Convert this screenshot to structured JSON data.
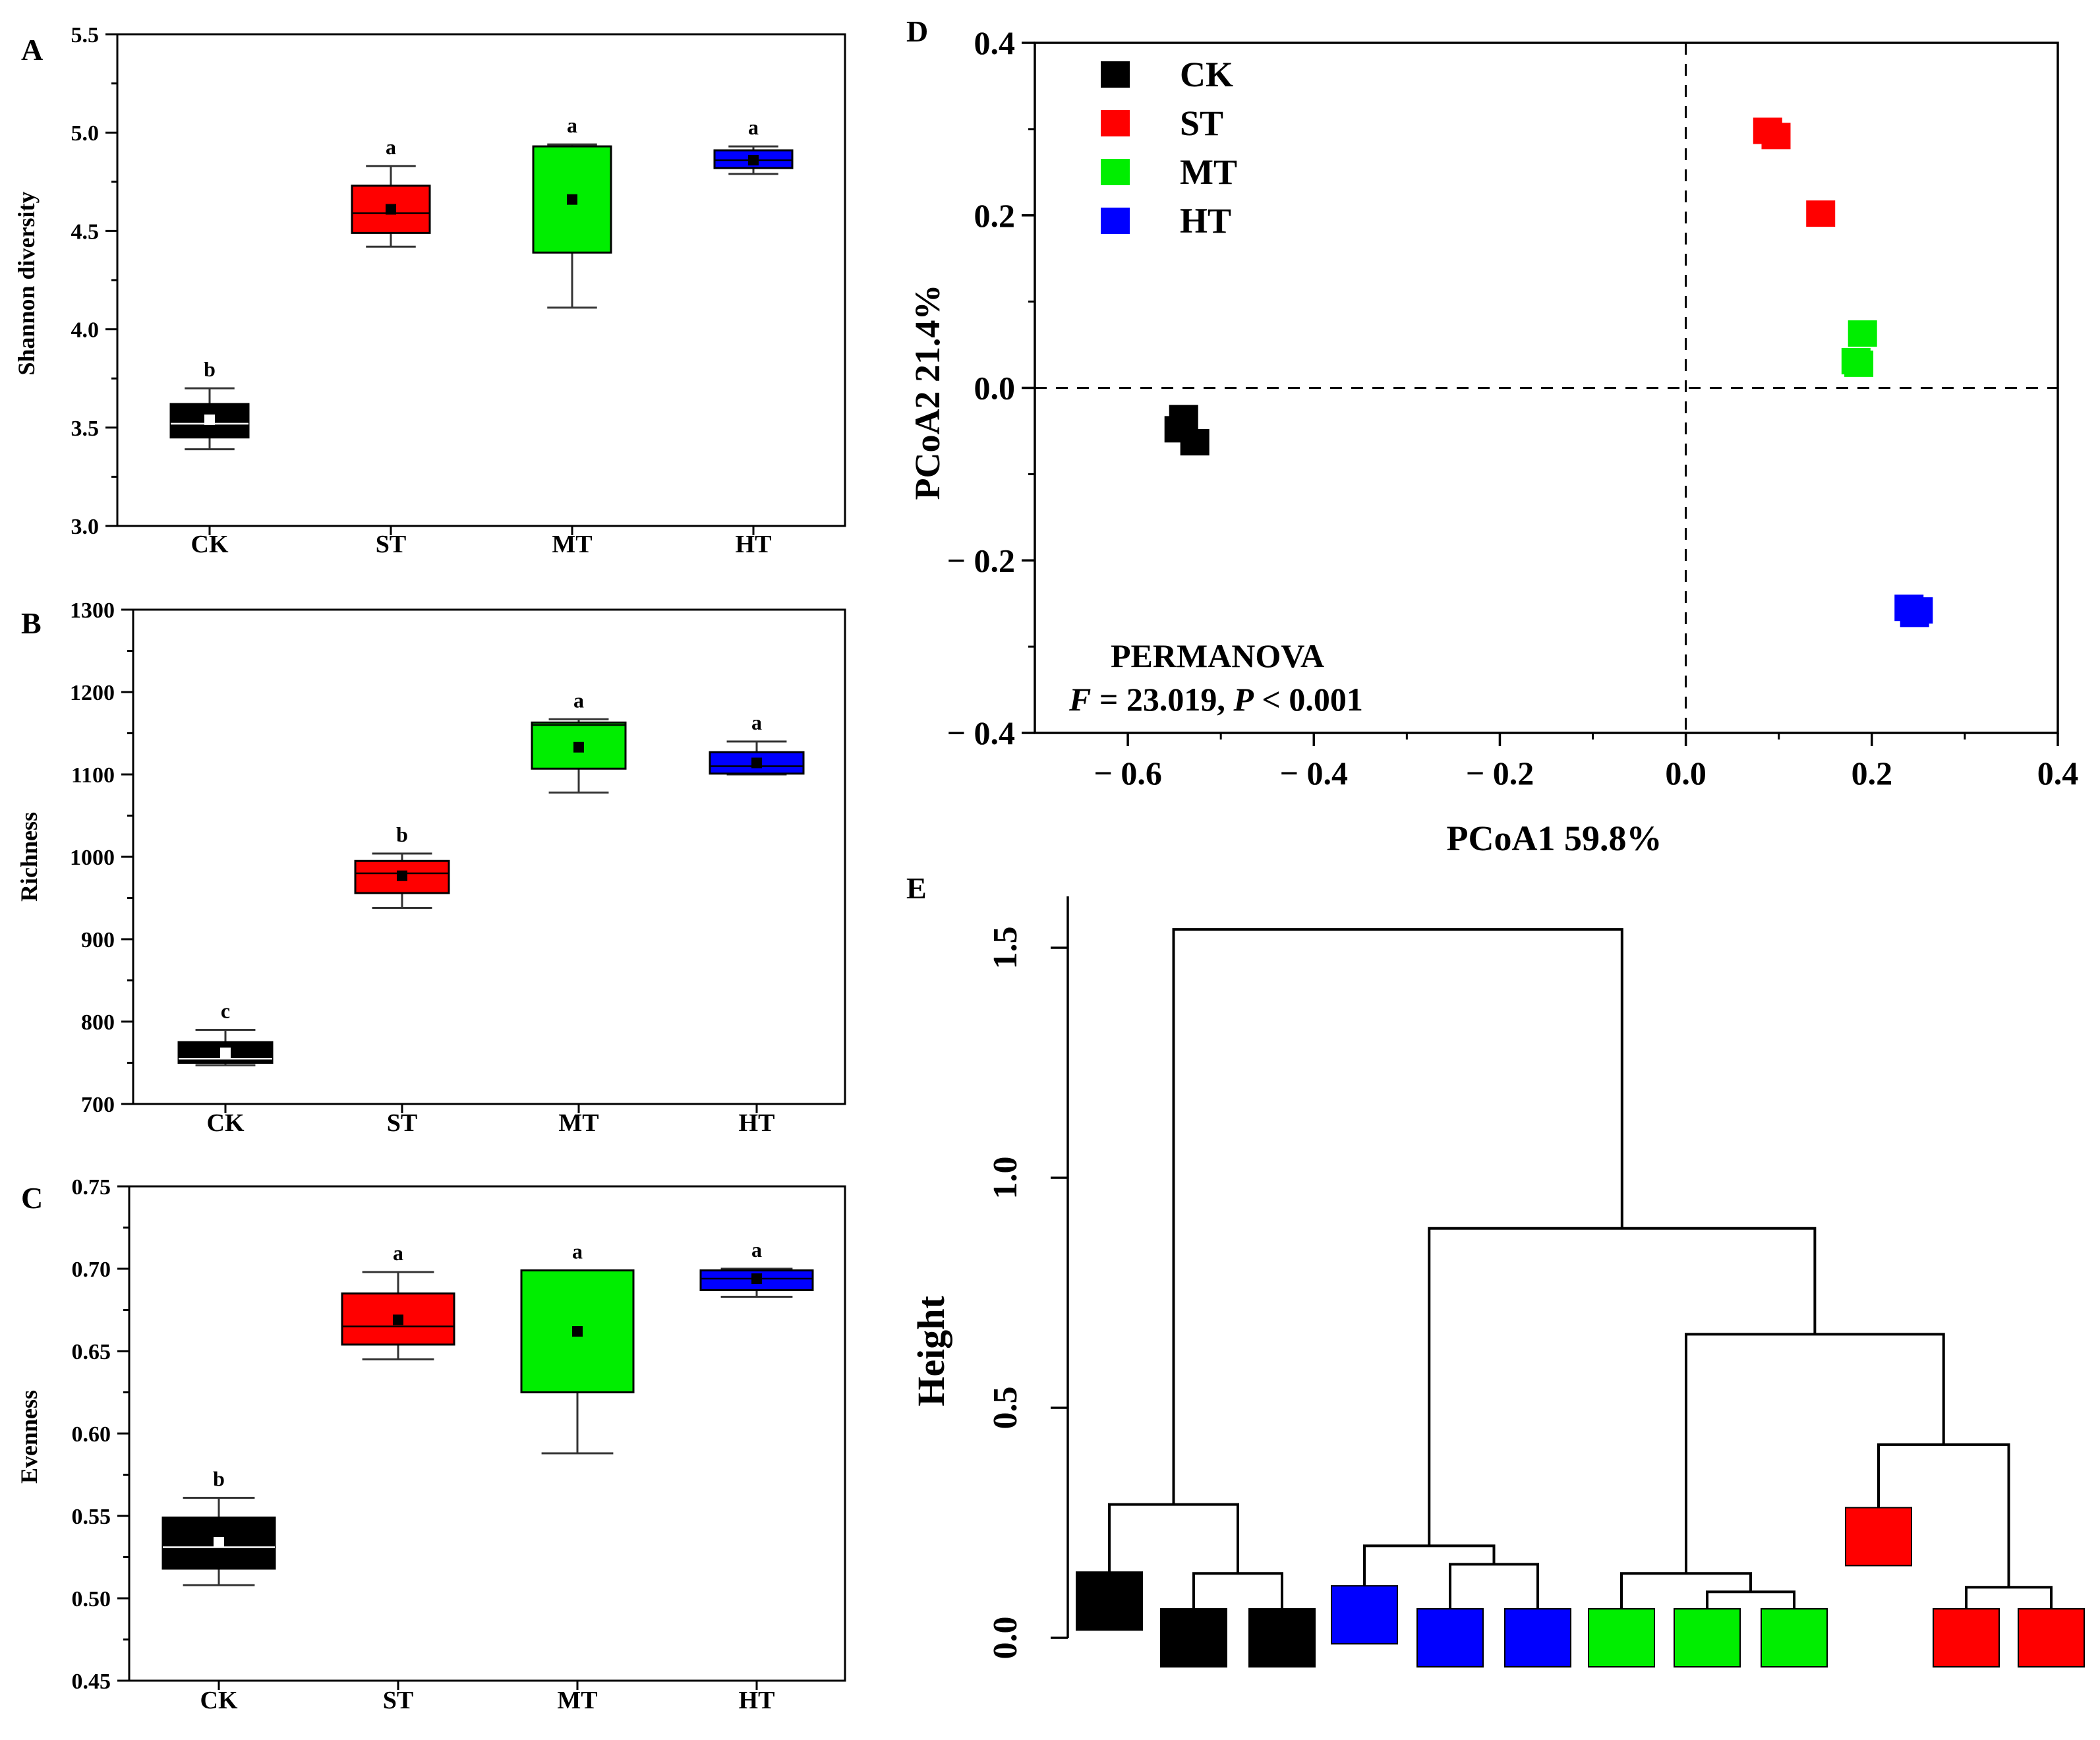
{
  "colors": {
    "CK": "#000000",
    "ST": "#ff0000",
    "MT": "#00ee00",
    "HT": "#0000ff"
  },
  "chart_data": [
    {
      "type": "box",
      "id": "A",
      "panel_label": "A",
      "ylabel": "Shannon diversity",
      "ylim": [
        3.0,
        5.5
      ],
      "yticks": [
        "3.0",
        "3.5",
        "4.0",
        "4.5",
        "5.0",
        "5.5"
      ],
      "categories": [
        "CK",
        "ST",
        "MT",
        "HT"
      ],
      "boxes": [
        {
          "group": "CK",
          "min": 3.39,
          "q1": 3.45,
          "median": 3.52,
          "q3": 3.62,
          "max": 3.7,
          "mean": 3.54,
          "letter": "b"
        },
        {
          "group": "ST",
          "min": 4.42,
          "q1": 4.49,
          "median": 4.59,
          "q3": 4.73,
          "max": 4.83,
          "mean": 4.61,
          "letter": "a"
        },
        {
          "group": "MT",
          "min": 4.11,
          "q1": 4.39,
          "median": 4.93,
          "q3": 4.93,
          "max": 4.94,
          "mean": 4.66,
          "letter": "a"
        },
        {
          "group": "HT",
          "min": 4.79,
          "q1": 4.82,
          "median": 4.86,
          "q3": 4.91,
          "max": 4.93,
          "mean": 4.86,
          "letter": "a"
        }
      ]
    },
    {
      "type": "box",
      "id": "B",
      "panel_label": "B",
      "ylabel": "Richness",
      "ylim": [
        700,
        1300
      ],
      "yticks": [
        "700",
        "800",
        "900",
        "1000",
        "1100",
        "1200",
        "1300"
      ],
      "categories": [
        "CK",
        "ST",
        "MT",
        "HT"
      ],
      "boxes": [
        {
          "group": "CK",
          "min": 747,
          "q1": 750,
          "median": 755,
          "q3": 775,
          "max": 790,
          "mean": 762,
          "letter": "c"
        },
        {
          "group": "ST",
          "min": 938,
          "q1": 956,
          "median": 980,
          "q3": 995,
          "max": 1004,
          "mean": 977,
          "letter": "b"
        },
        {
          "group": "MT",
          "min": 1078,
          "q1": 1107,
          "median": 1160,
          "q3": 1163,
          "max": 1167,
          "mean": 1133,
          "letter": "a"
        },
        {
          "group": "HT",
          "min": 1100,
          "q1": 1101,
          "median": 1110,
          "q3": 1127,
          "max": 1140,
          "mean": 1114,
          "letter": "a"
        }
      ]
    },
    {
      "type": "box",
      "id": "C",
      "panel_label": "C",
      "ylabel": "Evenness",
      "ylim": [
        0.45,
        0.75
      ],
      "yticks": [
        "0.45",
        "0.50",
        "0.55",
        "0.60",
        "0.65",
        "0.70",
        "0.75"
      ],
      "categories": [
        "CK",
        "ST",
        "MT",
        "HT"
      ],
      "boxes": [
        {
          "group": "CK",
          "min": 0.508,
          "q1": 0.518,
          "median": 0.531,
          "q3": 0.549,
          "max": 0.561,
          "mean": 0.534,
          "letter": "b"
        },
        {
          "group": "ST",
          "min": 0.645,
          "q1": 0.654,
          "median": 0.665,
          "q3": 0.685,
          "max": 0.698,
          "mean": 0.669,
          "letter": "a"
        },
        {
          "group": "MT",
          "min": 0.588,
          "q1": 0.625,
          "median": 0.699,
          "q3": 0.699,
          "max": 0.699,
          "mean": 0.662,
          "letter": "a"
        },
        {
          "group": "HT",
          "min": 0.683,
          "q1": 0.687,
          "median": 0.694,
          "q3": 0.699,
          "max": 0.7,
          "mean": 0.694,
          "letter": "a"
        }
      ]
    },
    {
      "type": "scatter",
      "id": "D",
      "panel_label": "D",
      "xlabel": "PCoA1 59.8%",
      "ylabel": "PCoA2 21.4%",
      "xlim": [
        -0.7,
        0.4
      ],
      "ylim": [
        -0.4,
        0.4
      ],
      "xticks": [
        "− 0.6",
        "− 0.4",
        "− 0.2",
        "0.0",
        "0.2",
        "0.4"
      ],
      "yticks": [
        "− 0.4",
        "− 0.2",
        "0.0",
        "0.2",
        "0.4"
      ],
      "legend": [
        "CK",
        "ST",
        "MT",
        "HT"
      ],
      "legend_position": "top-left",
      "annotation": "PERMANOVA",
      "statistic_parts": [
        "F",
        " = 23.019, ",
        "P",
        " < 0.001"
      ],
      "points": [
        {
          "group": "CK",
          "x": -0.545,
          "y": -0.048
        },
        {
          "group": "CK",
          "x": -0.54,
          "y": -0.035
        },
        {
          "group": "CK",
          "x": -0.528,
          "y": -0.063
        },
        {
          "group": "ST",
          "x": 0.088,
          "y": 0.298
        },
        {
          "group": "ST",
          "x": 0.097,
          "y": 0.292
        },
        {
          "group": "ST",
          "x": 0.145,
          "y": 0.202
        },
        {
          "group": "MT",
          "x": 0.19,
          "y": 0.063
        },
        {
          "group": "MT",
          "x": 0.183,
          "y": 0.031
        },
        {
          "group": "MT",
          "x": 0.186,
          "y": 0.028
        },
        {
          "group": "HT",
          "x": 0.24,
          "y": -0.255
        },
        {
          "group": "HT",
          "x": 0.25,
          "y": -0.258
        },
        {
          "group": "HT",
          "x": 0.246,
          "y": -0.262
        }
      ]
    },
    {
      "type": "dendrogram",
      "id": "E",
      "panel_label": "E",
      "ylabel": "Height",
      "ylim": [
        0.0,
        1.6
      ],
      "yticks": [
        "0.0",
        "0.5",
        "1.0",
        "1.5"
      ],
      "leaves": [
        {
          "group": "CK",
          "height": 0.08
        },
        {
          "group": "CK",
          "height": 0.0
        },
        {
          "group": "CK",
          "height": 0.0
        },
        {
          "group": "HT",
          "height": 0.05
        },
        {
          "group": "HT",
          "height": 0.0
        },
        {
          "group": "HT",
          "height": 0.0
        },
        {
          "group": "MT",
          "height": 0.0
        },
        {
          "group": "MT",
          "height": 0.0
        },
        {
          "group": "MT",
          "height": 0.0
        },
        {
          "group": "ST",
          "height": 0.22
        },
        {
          "group": "ST",
          "height": 0.0
        },
        {
          "group": "ST",
          "height": 0.0
        }
      ],
      "merges": [
        {
          "left": 1,
          "right": 2,
          "height": 0.14
        },
        {
          "left": 0,
          "right": "m0",
          "height": 0.29
        },
        {
          "left": 4,
          "right": 5,
          "height": 0.16
        },
        {
          "left": 3,
          "right": "m2",
          "height": 0.2
        },
        {
          "left": 7,
          "right": 8,
          "height": 0.1
        },
        {
          "left": 6,
          "right": "m4",
          "height": 0.14
        },
        {
          "left": 10,
          "right": 11,
          "height": 0.11
        },
        {
          "left": 9,
          "right": "m6",
          "height": 0.42
        },
        {
          "left": "m5",
          "right": "m7",
          "height": 0.66
        },
        {
          "left": "m3",
          "right": "m8",
          "height": 0.89
        },
        {
          "left": "m1",
          "right": "m9",
          "height": 1.54
        }
      ]
    }
  ]
}
